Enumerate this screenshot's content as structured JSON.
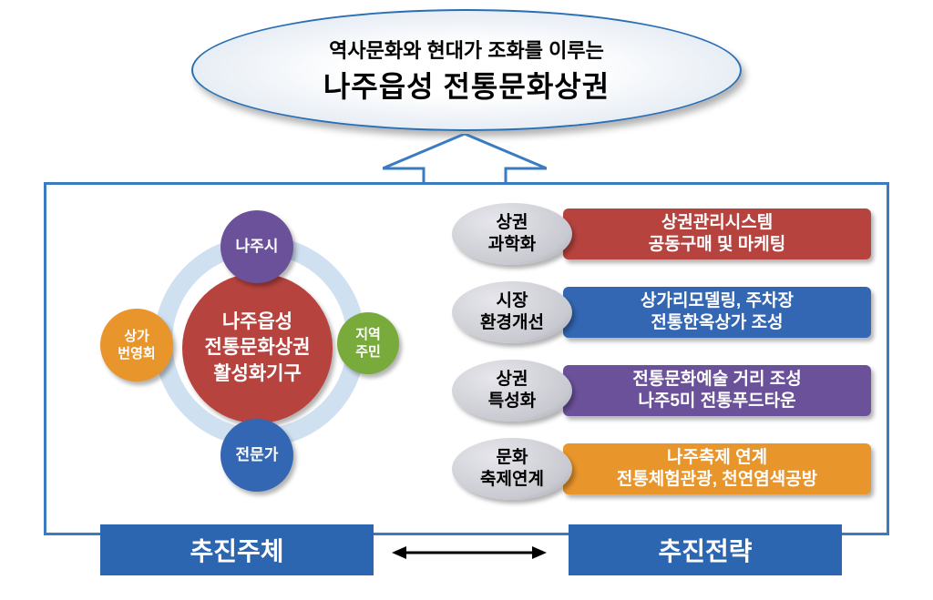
{
  "title": {
    "sub": "역사문화와 현대가 조화를 이루는",
    "main": "나주읍성 전통문화상권"
  },
  "org": {
    "center": "나주읍성\n전통문화상권\n활성화기구",
    "nodes": {
      "top": {
        "label": "나주시",
        "color": "#6b5199"
      },
      "right": {
        "label": "지역\n주민",
        "color": "#79aa3c"
      },
      "bottom": {
        "label": "전문가",
        "color": "#3366b3"
      },
      "left": {
        "label": "상가\n번영회",
        "color": "#e8952b"
      }
    },
    "center_color": "#b7433f"
  },
  "strategies": [
    {
      "pill": "상권\n과학화",
      "pill_color": "#c9c9d1",
      "bar": "상권관리시스템\n공동구매 및 마케팅",
      "bar_color": "#b7433f"
    },
    {
      "pill": "시장\n환경개선",
      "pill_color": "#c9c9d1",
      "bar": "상가리모델링, 주차장\n전통한옥상가 조성",
      "bar_color": "#3366b3"
    },
    {
      "pill": "상권\n특성화",
      "pill_color": "#c9c9d1",
      "bar": "전통문화예술 거리 조성\n나주5미 전통푸드타운",
      "bar_color": "#6b5199"
    },
    {
      "pill": "문화\n축제연계",
      "pill_color": "#c9c9d1",
      "bar": "나주축제 연계\n전통체험관광, 천연염색공방",
      "bar_color": "#e8952b"
    }
  ],
  "bottom": {
    "left": "추진주체",
    "right": "추진전략"
  },
  "colors": {
    "box_border": "#3a7bc1",
    "bottom_btn_bg": "#2c66b0",
    "ring_color": "#cfe0f0"
  }
}
